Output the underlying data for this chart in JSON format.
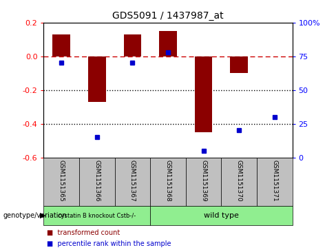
{
  "title": "GDS5091 / 1437987_at",
  "samples": [
    "GSM1151365",
    "GSM1151366",
    "GSM1151367",
    "GSM1151368",
    "GSM1151369",
    "GSM1151370",
    "GSM1151371"
  ],
  "red_bars": [
    0.13,
    -0.27,
    0.13,
    0.15,
    -0.45,
    -0.1,
    0.0
  ],
  "blue_dots_pct": [
    70,
    15,
    70,
    78,
    5,
    20,
    30
  ],
  "ylim_left": [
    -0.6,
    0.2
  ],
  "ylim_right": [
    0,
    100
  ],
  "yticks_left": [
    -0.6,
    -0.4,
    -0.2,
    0.0,
    0.2
  ],
  "yticks_right": [
    0,
    25,
    50,
    75,
    100
  ],
  "group_bg_color": "#c0c0c0",
  "red_bar_color": "#8B0000",
  "blue_dot_color": "#0000CD",
  "dashed_line_color": "#CC0000",
  "dotted_line_color": "#000000",
  "legend_label_red": "transformed count",
  "legend_label_blue": "percentile rank within the sample",
  "genotype_label": "genotype/variation",
  "group1_label": "cystatin B knockout Cstb-/-",
  "group2_label": "wild type",
  "group1_color": "#90EE90",
  "group2_color": "#90EE90",
  "group1_samples": 3,
  "group2_samples": 4
}
